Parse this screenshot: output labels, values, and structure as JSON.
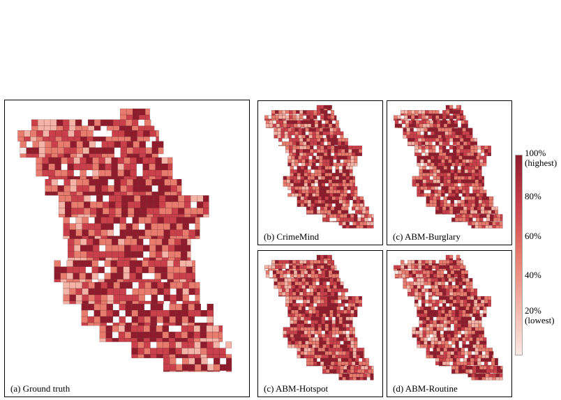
{
  "panels": [
    {
      "id": "a",
      "caption": "(a) Ground truth",
      "seed": 11
    },
    {
      "id": "b",
      "caption": "(b) CrimeMind",
      "seed": 23
    },
    {
      "id": "c1",
      "caption": "(c) ABM-Burglary",
      "seed": 37
    },
    {
      "id": "c2",
      "caption": "(c) ABM-Hotspot",
      "seed": 51
    },
    {
      "id": "d",
      "caption": "(d) ABM-Routine",
      "seed": 67
    }
  ],
  "legend": {
    "colors": [
      "#fbe9e4",
      "#f3b3a6",
      "#e77b6d",
      "#c9404a",
      "#8e1c2d"
    ],
    "ticks": [
      {
        "label": "100%",
        "sub": "(highest)",
        "value": 1.0
      },
      {
        "label": "80%",
        "sub": "",
        "value": 0.8
      },
      {
        "label": "60%",
        "sub": "",
        "value": 0.6
      },
      {
        "label": "40%",
        "sub": "",
        "value": 0.4
      },
      {
        "label": "20%",
        "sub": "(lowest)",
        "value": 0.2
      }
    ]
  }
}
